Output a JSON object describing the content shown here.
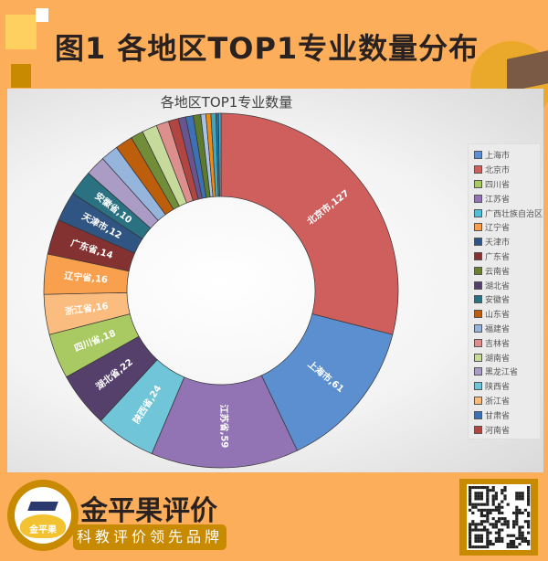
{
  "header": {
    "title": "图1  各地区TOP1专业数量分布"
  },
  "chart_data": {
    "type": "pie",
    "subtype": "donut",
    "title": "各地区TOP1专业数量",
    "legend_position": "right",
    "legend": [
      "上海市",
      "北京市",
      "四川省",
      "江苏省",
      "广西壮族自治区",
      "辽宁省",
      "天津市",
      "广东省",
      "云南省",
      "湖北省",
      "安徽省",
      "山东省",
      "福建省",
      "吉林省",
      "湖南省",
      "黑龙江省",
      "陕西省",
      "浙江省",
      "甘肃省",
      "河南省"
    ],
    "slices": [
      {
        "name": "北京市",
        "value": 127,
        "color": "#cf5f5c",
        "label": "北京市,127"
      },
      {
        "name": "上海市",
        "value": 61,
        "color": "#5b8fcf",
        "label": "上海市,61"
      },
      {
        "name": "江苏省",
        "value": 59,
        "color": "#9274b4",
        "label": "江苏省,59"
      },
      {
        "name": "陕西省",
        "value": 24,
        "color": "#70c6d8",
        "label": "陕西省,24"
      },
      {
        "name": "湖北省",
        "value": 22,
        "color": "#55406c",
        "label": "湖北省,22"
      },
      {
        "name": "四川省",
        "value": 18,
        "color": "#a9c963",
        "label": "四川省,18"
      },
      {
        "name": "浙江省",
        "value": 16,
        "color": "#fbbc80",
        "label": "浙江省,16"
      },
      {
        "name": "辽宁省",
        "value": 16,
        "color": "#f9a04e",
        "label": "辽宁省,16"
      },
      {
        "name": "广东省",
        "value": 14,
        "color": "#843231",
        "label": "广东省,14"
      },
      {
        "name": "天津市",
        "value": 12,
        "color": "#315583",
        "label": "天津市,12"
      },
      {
        "name": "安徽省",
        "value": 10,
        "color": "#2a7182",
        "label": "安徽省,10"
      },
      {
        "name": "黑龙江省",
        "value": 8,
        "color": "#ab9cc6",
        "label": ""
      },
      {
        "name": "福建省",
        "value": 7,
        "color": "#95b5dc",
        "label": ""
      },
      {
        "name": "山东省",
        "value": 7,
        "color": "#bc5e0c",
        "label": ""
      },
      {
        "name": "云南省",
        "value": 5,
        "color": "#728d3a",
        "label": ""
      },
      {
        "name": "湖南省",
        "value": 6,
        "color": "#c6da9c",
        "label": ""
      },
      {
        "name": "吉林省",
        "value": 5,
        "color": "#dc8f8d",
        "label": ""
      },
      {
        "name": "河南省",
        "value": 4,
        "color": "#b04542",
        "label": ""
      },
      {
        "name": "",
        "value": 3,
        "color": "#6a5490",
        "label": ""
      },
      {
        "name": "甘肃省",
        "value": 3,
        "color": "#3c72b4",
        "label": ""
      },
      {
        "name": "",
        "value": 3,
        "color": "#5e7a2c",
        "label": ""
      },
      {
        "name": "",
        "value": 2,
        "color": "#a8c2e6",
        "label": ""
      },
      {
        "name": "",
        "value": 2,
        "color": "#f08a10",
        "label": ""
      },
      {
        "name": "广西壮族自治区",
        "value": 2,
        "color": "#3fa6c2",
        "label": ""
      },
      {
        "name": "",
        "value": 1,
        "color": "#2d6ea0",
        "label": ""
      },
      {
        "name": "",
        "value": 1,
        "color": "#4bacc6",
        "label": ""
      }
    ]
  },
  "legend_colors": {
    "上海市": "#5b8fcf",
    "北京市": "#cf5f5c",
    "四川省": "#a9c963",
    "江苏省": "#9274b4",
    "广西壮族自治区": "#4fc0d8",
    "辽宁省": "#f9a04e",
    "天津市": "#315583",
    "广东省": "#843231",
    "云南省": "#6a7f34",
    "湖北省": "#55406c",
    "安徽省": "#2a7182",
    "山东省": "#bc5e0c",
    "福建省": "#95b5dc",
    "吉林省": "#dc8f8d",
    "湖南省": "#c6da9c",
    "黑龙江省": "#ab9cc6",
    "陕西省": "#70c6d8",
    "浙江省": "#fbbc80",
    "甘肃省": "#3c72b4",
    "河南省": "#b04542"
  },
  "footer": {
    "brand": "金平果评价",
    "slogan": "科教评价领先品牌",
    "logo_text": "金平果"
  }
}
